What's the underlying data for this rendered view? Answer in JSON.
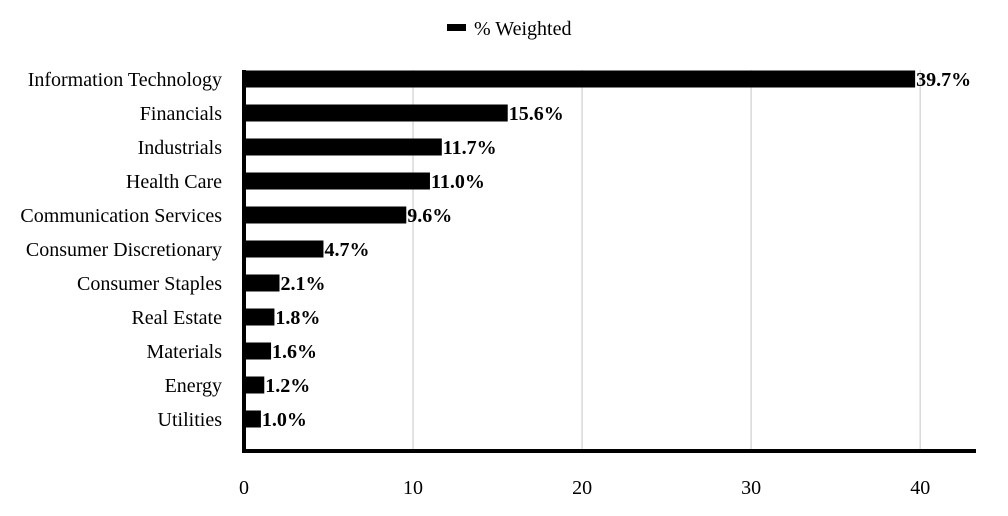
{
  "chart_data": {
    "type": "bar",
    "orientation": "horizontal",
    "title": "",
    "xlabel": "",
    "ylabel": "",
    "categories": [
      "Information Technology",
      "Financials",
      "Industrials",
      "Health Care",
      "Communication Services",
      "Consumer Discretionary",
      "Consumer Staples",
      "Real Estate",
      "Materials",
      "Energy",
      "Utilities"
    ],
    "series": [
      {
        "name": "% Weighted",
        "values": [
          39.7,
          15.6,
          11.7,
          11.0,
          9.6,
          4.7,
          2.1,
          1.8,
          1.6,
          1.2,
          1.0
        ],
        "color": "#000000",
        "data_labels": [
          "39.7%",
          "15.6%",
          "11.7%",
          "11.0%",
          "9.6%",
          "4.7%",
          "2.1%",
          "1.8%",
          "1.6%",
          "1.2%",
          "1.0%"
        ]
      }
    ],
    "x_ticks": [
      0,
      10,
      20,
      30,
      40
    ],
    "xlim": [
      0,
      43.3
    ],
    "grid": "vertical",
    "grid_color": "#d9d9d9",
    "legend_position": "top-center"
  }
}
